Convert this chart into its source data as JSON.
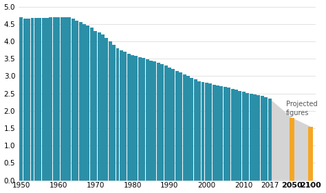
{
  "years": [
    1950,
    1951,
    1952,
    1953,
    1954,
    1955,
    1956,
    1957,
    1958,
    1959,
    1960,
    1961,
    1962,
    1963,
    1964,
    1965,
    1966,
    1967,
    1968,
    1969,
    1970,
    1971,
    1972,
    1973,
    1974,
    1975,
    1976,
    1977,
    1978,
    1979,
    1980,
    1981,
    1982,
    1983,
    1984,
    1985,
    1986,
    1987,
    1988,
    1989,
    1990,
    1991,
    1992,
    1993,
    1994,
    1995,
    1996,
    1997,
    1998,
    1999,
    2000,
    2001,
    2002,
    2003,
    2004,
    2005,
    2006,
    2007,
    2008,
    2009,
    2010,
    2011,
    2012,
    2013,
    2014,
    2015,
    2016,
    2017
  ],
  "values": [
    4.7,
    4.65,
    4.65,
    4.67,
    4.68,
    4.68,
    4.68,
    4.68,
    4.69,
    4.7,
    4.7,
    4.7,
    4.7,
    4.7,
    4.65,
    4.6,
    4.55,
    4.5,
    4.45,
    4.4,
    4.3,
    4.25,
    4.2,
    4.1,
    4.0,
    3.9,
    3.8,
    3.75,
    3.7,
    3.65,
    3.6,
    3.58,
    3.55,
    3.52,
    3.48,
    3.45,
    3.42,
    3.38,
    3.35,
    3.3,
    3.25,
    3.2,
    3.15,
    3.1,
    3.05,
    3.0,
    2.95,
    2.9,
    2.85,
    2.82,
    2.8,
    2.78,
    2.76,
    2.74,
    2.72,
    2.7,
    2.67,
    2.64,
    2.62,
    2.58,
    2.55,
    2.52,
    2.5,
    2.48,
    2.46,
    2.44,
    2.4,
    2.35
  ],
  "orange_bars_idx": [
    73,
    78
  ],
  "orange_bar_values": [
    1.8,
    1.55
  ],
  "orange_color": "#f5a623",
  "bar_color": "#2b8fa8",
  "projected_fill_color": "#d4d4d4",
  "annotation_text": "Projected\nfigures",
  "ylim": [
    0,
    5.0
  ],
  "yticks": [
    0.0,
    0.5,
    1.0,
    1.5,
    2.0,
    2.5,
    3.0,
    3.5,
    4.0,
    4.5,
    5.0
  ],
  "xtick_positions": [
    0,
    10,
    20,
    30,
    40,
    50,
    60,
    67,
    73,
    78
  ],
  "xtick_labels": [
    "1950",
    "1960",
    "1970",
    "1980",
    "1990",
    "2000",
    "2010",
    "2017",
    "2050",
    "2100"
  ],
  "xtick_bold": [
    "2050",
    "2100"
  ],
  "background_color": "#ffffff",
  "grid_color": "#dddddd",
  "proj_start_idx": 67,
  "proj_end_idx": 78,
  "proj_start_val": 2.35,
  "proj_end_val": 1.55,
  "proj_mid_idx": 73,
  "proj_mid_val": 1.8
}
